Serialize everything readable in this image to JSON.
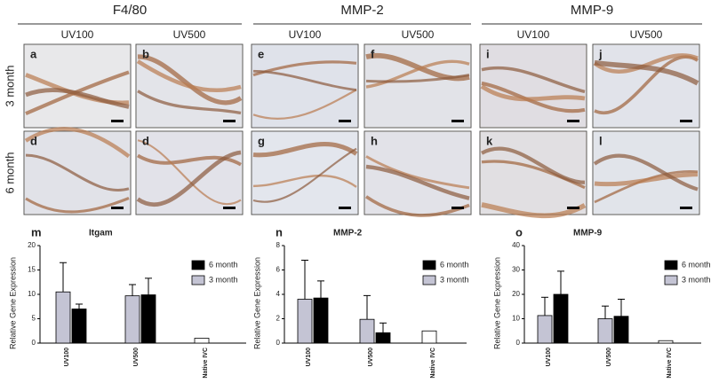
{
  "figure": {
    "headers": [
      {
        "title": "F4/80",
        "columns": [
          "UV100",
          "UV500"
        ]
      },
      {
        "title": "MMP-2",
        "columns": [
          "UV100",
          "UV500"
        ]
      },
      {
        "title": "MMP-9",
        "columns": [
          "UV100",
          "UV500"
        ]
      }
    ],
    "rows": [
      "3 month",
      "6 month"
    ],
    "panels": [
      [
        "a",
        "b",
        "e",
        "f",
        "i",
        "j"
      ],
      [
        "d",
        "d",
        "g",
        "h",
        "k",
        "l"
      ]
    ]
  },
  "chart_data": [
    {
      "type": "bar",
      "label": "m",
      "title": "Itgam",
      "y_label": "Relative Gene Expression",
      "categories": [
        "UV100",
        "UV500",
        "Native IVC"
      ],
      "series": [
        {
          "name": "3 month",
          "color": "#c4c4d4",
          "point_colors": [
            "#c4c4d4",
            "#c4c4d4",
            "#ffffff"
          ],
          "values": [
            10.5,
            9.7,
            1
          ],
          "errors": [
            6,
            2.3,
            null
          ]
        },
        {
          "name": "6 month",
          "color": "#000000",
          "values": [
            7,
            9.9,
            null
          ],
          "errors": [
            1,
            3.4,
            null
          ]
        }
      ],
      "ylim": [
        0,
        20
      ],
      "yticks": [
        0,
        5,
        10,
        15,
        20
      ]
    },
    {
      "type": "bar",
      "label": "n",
      "title": "MMP-2",
      "y_label": "Relative Gene Expression",
      "categories": [
        "UV100",
        "UV500",
        "Native IVC"
      ],
      "series": [
        {
          "name": "3 month",
          "color": "#c4c4d4",
          "point_colors": [
            "#c4c4d4",
            "#c4c4d4",
            "#ffffff"
          ],
          "values": [
            3.6,
            1.95,
            1
          ],
          "errors": [
            3.2,
            1.95,
            null
          ]
        },
        {
          "name": "6 month",
          "color": "#000000",
          "values": [
            3.7,
            0.85,
            null
          ],
          "errors": [
            1.4,
            0.8,
            null
          ]
        }
      ],
      "ylim": [
        0,
        8
      ],
      "yticks": [
        0,
        2,
        4,
        6,
        8
      ]
    },
    {
      "type": "bar",
      "label": "o",
      "title": "MMP-9",
      "y_label": "Relative Gene Expression",
      "categories": [
        "UV100",
        "UV500",
        "Native IVC"
      ],
      "series": [
        {
          "name": "3 month",
          "color": "#c4c4d4",
          "point_colors": [
            "#c4c4d4",
            "#c4c4d4",
            "#ffffff"
          ],
          "values": [
            11.3,
            10,
            1
          ],
          "errors": [
            7.5,
            5.2,
            null
          ]
        },
        {
          "name": "6 month",
          "color": "#000000",
          "values": [
            20,
            11,
            null
          ],
          "errors": [
            9.5,
            7,
            null
          ]
        }
      ],
      "ylim": [
        0,
        40
      ],
      "yticks": [
        0,
        10,
        20,
        30,
        40
      ]
    }
  ]
}
